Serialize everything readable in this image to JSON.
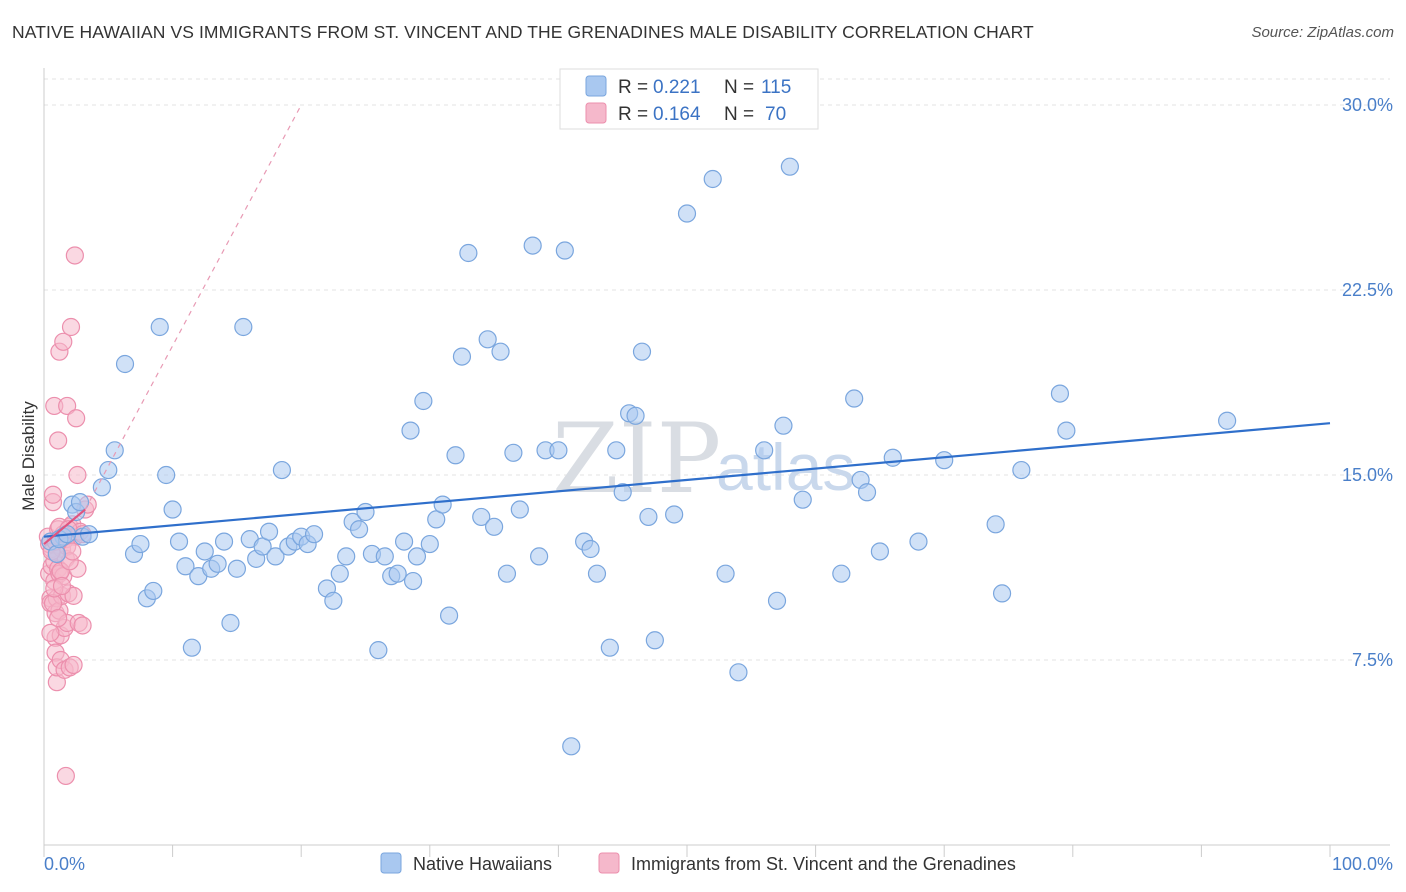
{
  "title": "NATIVE HAWAIIAN VS IMMIGRANTS FROM ST. VINCENT AND THE GRENADINES MALE DISABILITY CORRELATION CHART",
  "source": "Source: ZipAtlas.com",
  "watermark": {
    "zip": "ZIP",
    "atlas": "atlas"
  },
  "legend_top": {
    "r_label": "R = ",
    "n_label": "N = ",
    "rows": [
      {
        "r": "0.221",
        "n": "115",
        "color": "#a9c8f0"
      },
      {
        "r": "0.164",
        "n": "70",
        "color": "#f5b8cb"
      }
    ]
  },
  "chart_data": {
    "type": "scatter",
    "title": "NATIVE HAWAIIAN VS IMMIGRANTS FROM ST. VINCENT AND THE GRENADINES MALE DISABILITY CORRELATION CHART",
    "xlabel": "",
    "ylabel": "Male Disability",
    "xlim": [
      0,
      100
    ],
    "ylim": [
      0,
      31.5
    ],
    "x_tick_labels": [
      "0.0%",
      "100.0%"
    ],
    "y_ticks": [
      7.5,
      15.0,
      22.5,
      30.0
    ],
    "y_tick_labels": [
      "7.5%",
      "15.0%",
      "22.5%",
      "30.0%"
    ],
    "grid": true,
    "legend": "top-center",
    "series": [
      {
        "name": "Native Hawaiians",
        "color": "#a9c8f0",
        "stroke": "#7aa6de",
        "trend": {
          "x": [
            0,
            100
          ],
          "y": [
            12.5,
            17.1
          ],
          "color": "#2f6fcb"
        },
        "points": [
          [
            1.5,
            12.5
          ],
          [
            2.2,
            13.8
          ],
          [
            2.5,
            13.5
          ],
          [
            3,
            12.5
          ],
          [
            4.5,
            14.5
          ],
          [
            5,
            15.2
          ],
          [
            5.5,
            16.0
          ],
          [
            6.3,
            19.5
          ],
          [
            7,
            11.8
          ],
          [
            7.5,
            12.2
          ],
          [
            8,
            10.0
          ],
          [
            8.5,
            10.3
          ],
          [
            9,
            21.0
          ],
          [
            9.5,
            15.0
          ],
          [
            10,
            13.6
          ],
          [
            10.5,
            12.3
          ],
          [
            11,
            11.3
          ],
          [
            11.5,
            8.0
          ],
          [
            12,
            10.9
          ],
          [
            12.5,
            11.9
          ],
          [
            13,
            11.2
          ],
          [
            13.5,
            11.4
          ],
          [
            14,
            12.3
          ],
          [
            14.5,
            9.0
          ],
          [
            15,
            11.2
          ],
          [
            15.5,
            21.0
          ],
          [
            16,
            12.4
          ],
          [
            16.5,
            11.6
          ],
          [
            17,
            12.1
          ],
          [
            17.5,
            12.7
          ],
          [
            18,
            11.7
          ],
          [
            18.5,
            15.2
          ],
          [
            19,
            12.1
          ],
          [
            19.5,
            12.3
          ],
          [
            20,
            12.5
          ],
          [
            20.5,
            12.2
          ],
          [
            21,
            12.6
          ],
          [
            22,
            10.4
          ],
          [
            22.5,
            9.9
          ],
          [
            23,
            11.0
          ],
          [
            23.5,
            11.7
          ],
          [
            24,
            13.1
          ],
          [
            24.5,
            12.8
          ],
          [
            25,
            13.5
          ],
          [
            25.5,
            11.8
          ],
          [
            26,
            7.9
          ],
          [
            26.5,
            11.7
          ],
          [
            27,
            10.9
          ],
          [
            27.5,
            11.0
          ],
          [
            28,
            12.3
          ],
          [
            28.5,
            16.8
          ],
          [
            28.7,
            10.7
          ],
          [
            29,
            11.7
          ],
          [
            29.5,
            18.0
          ],
          [
            30,
            12.2
          ],
          [
            30.5,
            13.2
          ],
          [
            31,
            13.8
          ],
          [
            31.5,
            9.3
          ],
          [
            32,
            15.8
          ],
          [
            32.5,
            19.8
          ],
          [
            33,
            24.0
          ],
          [
            34,
            13.3
          ],
          [
            34.5,
            20.5
          ],
          [
            35,
            12.9
          ],
          [
            35.5,
            20.0
          ],
          [
            36,
            11.0
          ],
          [
            36.5,
            15.9
          ],
          [
            37,
            13.6
          ],
          [
            38,
            24.3
          ],
          [
            38.5,
            11.7
          ],
          [
            39,
            16.0
          ],
          [
            40,
            16.0
          ],
          [
            40.5,
            24.1
          ],
          [
            41,
            4.0
          ],
          [
            42,
            12.3
          ],
          [
            42.5,
            12.0
          ],
          [
            43,
            11.0
          ],
          [
            44,
            8.0
          ],
          [
            44.5,
            16.0
          ],
          [
            45,
            14.3
          ],
          [
            45.5,
            17.5
          ],
          [
            46,
            17.4
          ],
          [
            46.5,
            20.0
          ],
          [
            47,
            13.3
          ],
          [
            47.5,
            8.3
          ],
          [
            49,
            13.4
          ],
          [
            50,
            25.6
          ],
          [
            52,
            27.0
          ],
          [
            53,
            11.0
          ],
          [
            54,
            7.0
          ],
          [
            56,
            16.0
          ],
          [
            57,
            9.9
          ],
          [
            57.5,
            17.0
          ],
          [
            58,
            27.5
          ],
          [
            59,
            14.0
          ],
          [
            62,
            11.0
          ],
          [
            63,
            18.1
          ],
          [
            63.5,
            14.8
          ],
          [
            64,
            14.3
          ],
          [
            65,
            11.9
          ],
          [
            66,
            15.7
          ],
          [
            68,
            12.3
          ],
          [
            70,
            15.6
          ],
          [
            74,
            13.0
          ],
          [
            74.5,
            10.2
          ],
          [
            76,
            15.2
          ],
          [
            79,
            18.3
          ],
          [
            79.5,
            16.8
          ],
          [
            92,
            17.2
          ],
          [
            0.5,
            12.3
          ],
          [
            1,
            11.8
          ],
          [
            1.2,
            12.4
          ],
          [
            1.8,
            12.6
          ],
          [
            2.8,
            13.9
          ],
          [
            3.5,
            12.6
          ]
        ]
      },
      {
        "name": "Immigrants from St. Vincent and the Grenadines",
        "color": "#f5b8cb",
        "stroke": "#ec8fad",
        "trend": {
          "x": [
            0,
            3.2
          ],
          "y": [
            12.2,
            13.6
          ],
          "color": "#e0547f"
        },
        "trend_ext": {
          "x": [
            3.2,
            20
          ],
          "y": [
            13.6,
            30.0
          ],
          "color": "#e89ab4"
        },
        "points": [
          [
            0.3,
            12.5
          ],
          [
            0.4,
            11.0
          ],
          [
            0.5,
            10.0
          ],
          [
            0.5,
            9.8
          ],
          [
            0.6,
            11.3
          ],
          [
            0.6,
            12.0
          ],
          [
            0.7,
            13.9
          ],
          [
            0.7,
            14.2
          ],
          [
            0.8,
            11.5
          ],
          [
            0.8,
            10.7
          ],
          [
            0.8,
            17.8
          ],
          [
            0.9,
            9.4
          ],
          [
            0.9,
            8.4
          ],
          [
            0.9,
            7.8
          ],
          [
            1.0,
            6.6
          ],
          [
            1.0,
            7.2
          ],
          [
            1.0,
            10.0
          ],
          [
            1.1,
            11.2
          ],
          [
            1.1,
            12.8
          ],
          [
            1.1,
            16.4
          ],
          [
            1.2,
            20.0
          ],
          [
            1.2,
            11.0
          ],
          [
            1.2,
            9.5
          ],
          [
            1.3,
            8.5
          ],
          [
            1.3,
            7.5
          ],
          [
            1.4,
            10.1
          ],
          [
            1.4,
            12.0
          ],
          [
            1.5,
            10.9
          ],
          [
            1.5,
            20.4
          ],
          [
            1.6,
            8.8
          ],
          [
            1.6,
            7.1
          ],
          [
            1.7,
            11.6
          ],
          [
            1.7,
            12.4
          ],
          [
            1.8,
            17.8
          ],
          [
            1.8,
            9.0
          ],
          [
            1.9,
            10.2
          ],
          [
            2.0,
            7.2
          ],
          [
            2.0,
            12.9
          ],
          [
            2.1,
            21.0
          ],
          [
            2.2,
            13.0
          ],
          [
            2.3,
            10.1
          ],
          [
            2.3,
            7.3
          ],
          [
            2.4,
            12.5
          ],
          [
            2.5,
            17.3
          ],
          [
            2.6,
            11.2
          ],
          [
            2.6,
            15.0
          ],
          [
            2.7,
            9.0
          ],
          [
            2.8,
            12.7
          ],
          [
            3.0,
            12.6
          ],
          [
            3.0,
            8.9
          ],
          [
            3.2,
            13.6
          ],
          [
            3.4,
            13.8
          ],
          [
            1.7,
            2.8
          ],
          [
            2.4,
            23.9
          ],
          [
            0.4,
            12.2
          ],
          [
            0.6,
            11.9
          ],
          [
            0.9,
            12.3
          ],
          [
            1.3,
            11.1
          ],
          [
            1.5,
            12.6
          ],
          [
            1.8,
            12.1
          ],
          [
            2.0,
            11.5
          ],
          [
            0.7,
            9.8
          ],
          [
            0.8,
            10.4
          ],
          [
            1.0,
            11.8
          ],
          [
            1.2,
            12.9
          ],
          [
            1.4,
            10.5
          ],
          [
            1.9,
            12.8
          ],
          [
            2.2,
            11.9
          ],
          [
            0.5,
            8.6
          ],
          [
            1.1,
            9.2
          ]
        ]
      }
    ]
  }
}
